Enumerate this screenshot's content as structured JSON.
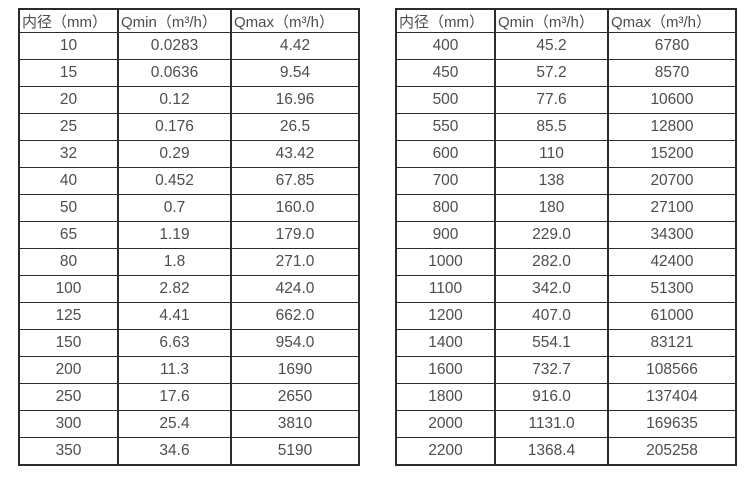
{
  "colors": {
    "background": "#ffffff",
    "border": "#2b2b2b",
    "text": "#4d4d4d"
  },
  "chart_data": [
    {
      "type": "table",
      "headers": [
        "内径（mm）",
        "Qmin（m³/h）",
        "Qmax（m³/h）"
      ],
      "rows": [
        [
          "10",
          "0.0283",
          "4.42"
        ],
        [
          "15",
          "0.0636",
          "9.54"
        ],
        [
          "20",
          "0.12",
          "16.96"
        ],
        [
          "25",
          "0.176",
          "26.5"
        ],
        [
          "32",
          "0.29",
          "43.42"
        ],
        [
          "40",
          "0.452",
          "67.85"
        ],
        [
          "50",
          "0.7",
          "160.0"
        ],
        [
          "65",
          "1.19",
          "179.0"
        ],
        [
          "80",
          "1.8",
          "271.0"
        ],
        [
          "100",
          "2.82",
          "424.0"
        ],
        [
          "125",
          "4.41",
          "662.0"
        ],
        [
          "150",
          "6.63",
          "954.0"
        ],
        [
          "200",
          "11.3",
          "1690"
        ],
        [
          "250",
          "17.6",
          "2650"
        ],
        [
          "300",
          "25.4",
          "3810"
        ],
        [
          "350",
          "34.6",
          "5190"
        ]
      ]
    },
    {
      "type": "table",
      "headers": [
        "内径（mm）",
        "Qmin（m³/h）",
        "Qmax（m³/h）"
      ],
      "rows": [
        [
          "400",
          "45.2",
          "6780"
        ],
        [
          "450",
          "57.2",
          "8570"
        ],
        [
          "500",
          "77.6",
          "10600"
        ],
        [
          "550",
          "85.5",
          "12800"
        ],
        [
          "600",
          "110",
          "15200"
        ],
        [
          "700",
          "138",
          "20700"
        ],
        [
          "800",
          "180",
          "27100"
        ],
        [
          "900",
          "229.0",
          "34300"
        ],
        [
          "1000",
          "282.0",
          "42400"
        ],
        [
          "1100",
          "342.0",
          "51300"
        ],
        [
          "1200",
          "407.0",
          "61000"
        ],
        [
          "1400",
          "554.1",
          "83121"
        ],
        [
          "1600",
          "732.7",
          "108566"
        ],
        [
          "1800",
          "916.0",
          "137404"
        ],
        [
          "2000",
          "1131.0",
          "169635"
        ],
        [
          "2200",
          "1368.4",
          "205258"
        ]
      ]
    }
  ]
}
